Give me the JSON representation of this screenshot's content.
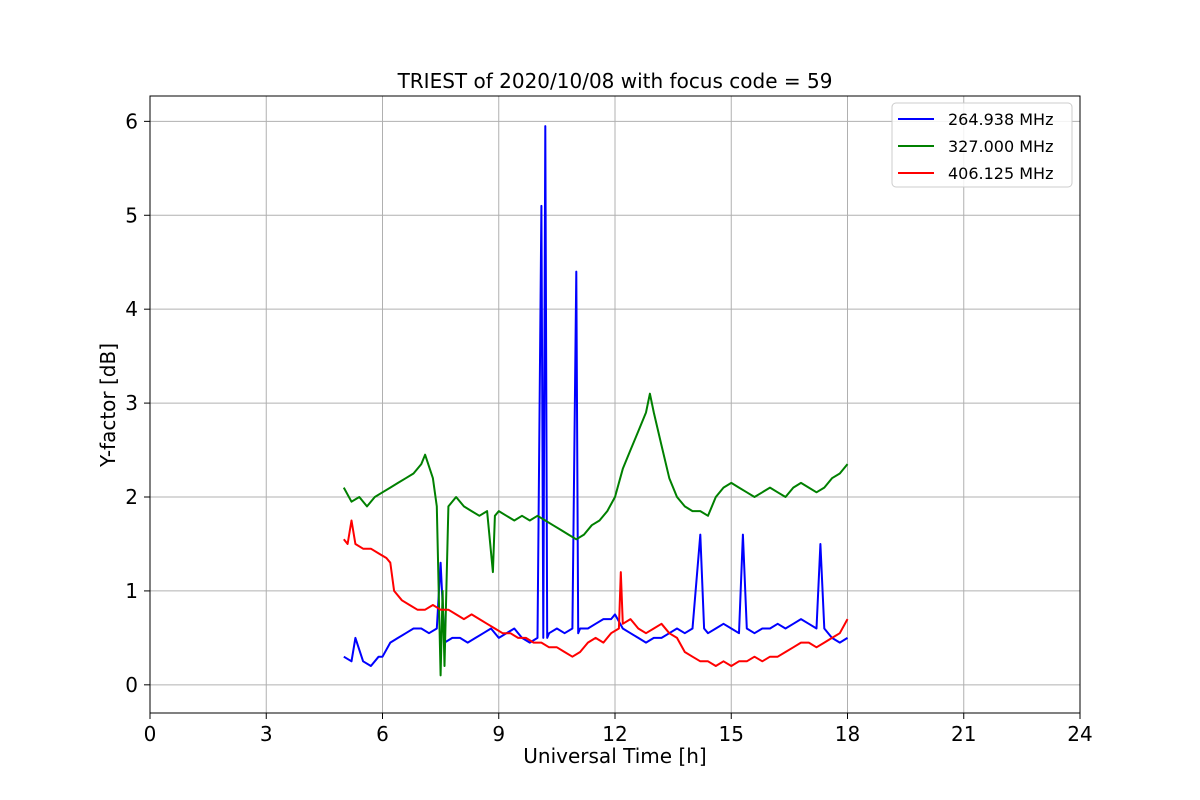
{
  "chart_data": {
    "type": "line",
    "title": "TRIEST of 2020/10/08 with focus code = 59",
    "xlabel": "Universal Time [h]",
    "ylabel": "Y-factor [dB]",
    "xlim": [
      0,
      24
    ],
    "ylim": [
      -0.3,
      6.27
    ],
    "xticks": [
      0,
      3,
      6,
      9,
      12,
      15,
      18,
      21,
      24
    ],
    "yticks": [
      0,
      1,
      2,
      3,
      4,
      5,
      6
    ],
    "grid": true,
    "legend_position": "top-right",
    "series": [
      {
        "name": "264.938 MHz",
        "color": "#0000ff",
        "x": [
          5.0,
          5.2,
          5.3,
          5.5,
          5.7,
          5.9,
          6.0,
          6.2,
          6.4,
          6.6,
          6.8,
          7.0,
          7.2,
          7.4,
          7.5,
          7.6,
          7.8,
          8.0,
          8.2,
          8.4,
          8.6,
          8.8,
          9.0,
          9.2,
          9.4,
          9.6,
          9.8,
          10.0,
          10.1,
          10.15,
          10.2,
          10.25,
          10.3,
          10.5,
          10.7,
          10.9,
          11.0,
          11.05,
          11.1,
          11.3,
          11.5,
          11.7,
          11.9,
          12.0,
          12.2,
          12.4,
          12.6,
          12.8,
          13.0,
          13.2,
          13.4,
          13.6,
          13.8,
          14.0,
          14.2,
          14.3,
          14.4,
          14.6,
          14.8,
          15.0,
          15.2,
          15.3,
          15.4,
          15.6,
          15.8,
          16.0,
          16.2,
          16.4,
          16.6,
          16.8,
          17.0,
          17.2,
          17.3,
          17.4,
          17.6,
          17.8,
          18.0
        ],
        "y": [
          0.3,
          0.25,
          0.5,
          0.25,
          0.2,
          0.3,
          0.3,
          0.45,
          0.5,
          0.55,
          0.6,
          0.6,
          0.55,
          0.6,
          1.3,
          0.45,
          0.5,
          0.5,
          0.45,
          0.5,
          0.55,
          0.6,
          0.5,
          0.55,
          0.6,
          0.5,
          0.45,
          0.5,
          5.1,
          0.5,
          5.95,
          0.5,
          0.55,
          0.6,
          0.55,
          0.6,
          4.4,
          0.55,
          0.6,
          0.6,
          0.65,
          0.7,
          0.7,
          0.75,
          0.6,
          0.55,
          0.5,
          0.45,
          0.5,
          0.5,
          0.55,
          0.6,
          0.55,
          0.6,
          1.6,
          0.6,
          0.55,
          0.6,
          0.65,
          0.6,
          0.55,
          1.6,
          0.6,
          0.55,
          0.6,
          0.6,
          0.65,
          0.6,
          0.65,
          0.7,
          0.65,
          0.6,
          1.5,
          0.6,
          0.5,
          0.45,
          0.5
        ]
      },
      {
        "name": "327.000 MHz",
        "color": "#008000",
        "x": [
          5.0,
          5.2,
          5.4,
          5.6,
          5.8,
          6.0,
          6.2,
          6.4,
          6.6,
          6.8,
          7.0,
          7.1,
          7.3,
          7.4,
          7.5,
          7.55,
          7.6,
          7.7,
          7.9,
          8.1,
          8.3,
          8.5,
          8.7,
          8.85,
          8.9,
          9.0,
          9.2,
          9.4,
          9.6,
          9.8,
          10.0,
          10.2,
          10.4,
          10.6,
          10.8,
          11.0,
          11.2,
          11.4,
          11.6,
          11.8,
          12.0,
          12.2,
          12.4,
          12.6,
          12.8,
          12.9,
          13.0,
          13.2,
          13.4,
          13.6,
          13.8,
          14.0,
          14.2,
          14.4,
          14.6,
          14.8,
          15.0,
          15.2,
          15.4,
          15.6,
          15.8,
          16.0,
          16.2,
          16.4,
          16.6,
          16.8,
          17.0,
          17.2,
          17.4,
          17.6,
          17.8,
          18.0
        ],
        "y": [
          2.1,
          1.95,
          2.0,
          1.9,
          2.0,
          2.05,
          2.1,
          2.15,
          2.2,
          2.25,
          2.35,
          2.45,
          2.2,
          1.9,
          0.1,
          1.0,
          0.2,
          1.9,
          2.0,
          1.9,
          1.85,
          1.8,
          1.85,
          1.2,
          1.8,
          1.85,
          1.8,
          1.75,
          1.8,
          1.75,
          1.8,
          1.75,
          1.7,
          1.65,
          1.6,
          1.55,
          1.6,
          1.7,
          1.75,
          1.85,
          2.0,
          2.3,
          2.5,
          2.7,
          2.9,
          3.1,
          2.9,
          2.55,
          2.2,
          2.0,
          1.9,
          1.85,
          1.85,
          1.8,
          2.0,
          2.1,
          2.15,
          2.1,
          2.05,
          2.0,
          2.05,
          2.1,
          2.05,
          2.0,
          2.1,
          2.15,
          2.1,
          2.05,
          2.1,
          2.2,
          2.25,
          2.35
        ]
      },
      {
        "name": "406.125 MHz",
        "color": "#ff0000",
        "x": [
          5.0,
          5.1,
          5.2,
          5.3,
          5.5,
          5.7,
          5.9,
          6.1,
          6.2,
          6.3,
          6.5,
          6.7,
          6.9,
          7.1,
          7.3,
          7.5,
          7.7,
          7.9,
          8.1,
          8.3,
          8.5,
          8.7,
          8.9,
          9.1,
          9.3,
          9.5,
          9.7,
          9.9,
          10.1,
          10.3,
          10.5,
          10.7,
          10.9,
          11.1,
          11.3,
          11.5,
          11.7,
          11.9,
          12.1,
          12.15,
          12.2,
          12.4,
          12.6,
          12.8,
          13.0,
          13.2,
          13.4,
          13.6,
          13.8,
          14.0,
          14.2,
          14.4,
          14.6,
          14.8,
          15.0,
          15.2,
          15.4,
          15.6,
          15.8,
          16.0,
          16.2,
          16.4,
          16.6,
          16.8,
          17.0,
          17.2,
          17.4,
          17.6,
          17.8,
          18.0
        ],
        "y": [
          1.55,
          1.5,
          1.75,
          1.5,
          1.45,
          1.45,
          1.4,
          1.35,
          1.3,
          1.0,
          0.9,
          0.85,
          0.8,
          0.8,
          0.85,
          0.8,
          0.8,
          0.75,
          0.7,
          0.75,
          0.7,
          0.65,
          0.6,
          0.55,
          0.55,
          0.5,
          0.5,
          0.45,
          0.45,
          0.4,
          0.4,
          0.35,
          0.3,
          0.35,
          0.45,
          0.5,
          0.45,
          0.55,
          0.6,
          1.2,
          0.65,
          0.7,
          0.6,
          0.55,
          0.6,
          0.65,
          0.55,
          0.5,
          0.35,
          0.3,
          0.25,
          0.25,
          0.2,
          0.25,
          0.2,
          0.25,
          0.25,
          0.3,
          0.25,
          0.3,
          0.3,
          0.35,
          0.4,
          0.45,
          0.45,
          0.4,
          0.45,
          0.5,
          0.55,
          0.7
        ]
      }
    ]
  }
}
